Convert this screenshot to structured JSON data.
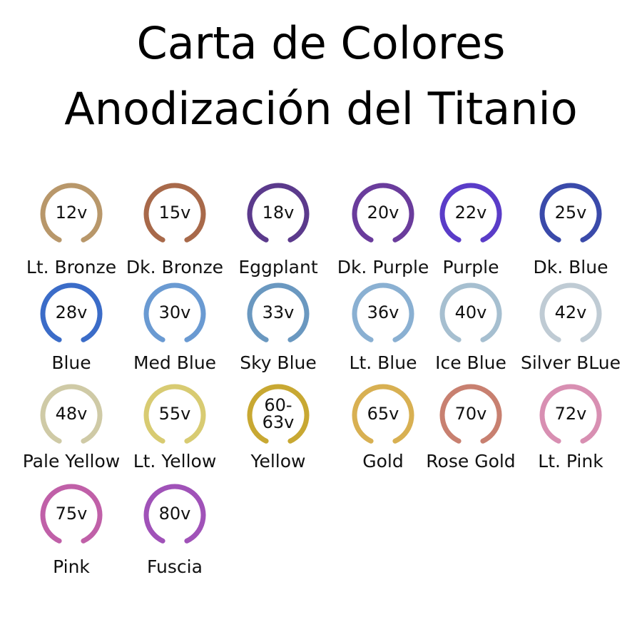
{
  "header": {
    "title_lines": [
      "Carta de Colores",
      "Anodización del Titanio"
    ]
  },
  "items": [
    {
      "voltage": "12v",
      "name": "Lt. Bronze",
      "color": "#b8976a"
    },
    {
      "voltage": "15v",
      "name": "Dk. Bronze",
      "color": "#a8694a"
    },
    {
      "voltage": "18v",
      "name": "Eggplant",
      "color": "#5b3a8c"
    },
    {
      "voltage": "20v",
      "name": "Dk. Purple",
      "color": "#6a3c9c"
    },
    {
      "voltage": "22v",
      "name": "Purple",
      "color": "#5a3cc8"
    },
    {
      "voltage": "25v",
      "name": "Dk. Blue",
      "color": "#3a4aaa"
    },
    {
      "voltage": "28v",
      "name": "Blue",
      "color": "#3b6cc8"
    },
    {
      "voltage": "30v",
      "name": "Med Blue",
      "color": "#6a9ad2"
    },
    {
      "voltage": "33v",
      "name": "Sky Blue",
      "color": "#6a98c0"
    },
    {
      "voltage": "36v",
      "name": "Lt. Blue",
      "color": "#8ab0d2"
    },
    {
      "voltage": "40v",
      "name": "Ice Blue",
      "color": "#a6bfd0"
    },
    {
      "voltage": "42v",
      "name": "Silver BLue",
      "color": "#bfcbd4"
    },
    {
      "voltage": "48v",
      "name": "Pale Yellow",
      "color": "#cfcaa6"
    },
    {
      "voltage": "55v",
      "name": "Lt. Yellow",
      "color": "#d8cb72"
    },
    {
      "voltage": "60-\n63v",
      "name": "Yellow",
      "color": "#c8a832"
    },
    {
      "voltage": "65v",
      "name": "Gold",
      "color": "#d8b052"
    },
    {
      "voltage": "70v",
      "name": "Rose Gold",
      "color": "#c88070"
    },
    {
      "voltage": "72v",
      "name": "Lt. Pink",
      "color": "#d88fb2"
    },
    {
      "voltage": "75v",
      "name": "Pink",
      "color": "#c060a8"
    },
    {
      "voltage": "80v",
      "name": "Fuscia",
      "color": "#a052b8"
    }
  ]
}
